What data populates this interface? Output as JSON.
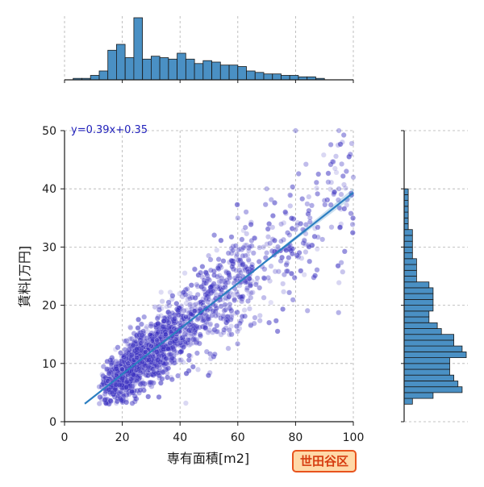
{
  "chart_data": {
    "type": "scatter",
    "xlabel": "専有面積[m2]",
    "ylabel": "賃料[万円]",
    "xlim": [
      0,
      100
    ],
    "ylim": [
      0,
      50
    ],
    "x_ticks": [
      "0",
      "20",
      "40",
      "60",
      "80",
      "100"
    ],
    "y_ticks": [
      "0",
      "10",
      "20",
      "30",
      "40",
      "50"
    ],
    "grid": true,
    "regression": {
      "label": "y=0.39x+0.35",
      "slope": 0.39,
      "intercept": 0.35,
      "x_range": [
        7,
        100
      ]
    },
    "scatter_points_sample": [
      [
        12,
        6
      ],
      [
        15,
        7
      ],
      [
        18,
        8
      ],
      [
        20,
        9
      ],
      [
        22,
        10
      ],
      [
        25,
        11
      ],
      [
        28,
        12
      ],
      [
        30,
        13
      ],
      [
        32,
        14
      ],
      [
        35,
        15
      ],
      [
        38,
        16
      ],
      [
        40,
        17
      ],
      [
        42,
        18
      ],
      [
        45,
        19
      ],
      [
        48,
        20
      ],
      [
        50,
        21
      ],
      [
        55,
        23
      ],
      [
        60,
        25
      ],
      [
        65,
        27
      ],
      [
        70,
        29
      ],
      [
        75,
        31
      ],
      [
        80,
        33
      ],
      [
        85,
        35
      ],
      [
        90,
        38
      ],
      [
        95,
        40
      ],
      [
        100,
        42
      ],
      [
        80,
        50
      ],
      [
        95,
        50
      ],
      [
        70,
        40
      ],
      [
        60,
        35
      ]
    ],
    "x_histogram": {
      "bin_start": 0,
      "bin_width": 3,
      "counts": [
        0,
        1,
        1,
        3,
        6,
        20,
        24,
        15,
        42,
        14,
        16,
        15,
        14,
        18,
        14,
        11,
        13,
        12,
        10,
        10,
        9,
        6,
        5,
        4,
        4,
        3,
        3,
        2,
        2,
        1
      ]
    },
    "y_histogram": {
      "bin_start": 3,
      "bin_width": 1,
      "counts": [
        2,
        7,
        14,
        13,
        12,
        11,
        11,
        11,
        15,
        14,
        12,
        12,
        9,
        8,
        6,
        6,
        7,
        7,
        7,
        7,
        6,
        3,
        3,
        3,
        3,
        2,
        2,
        2,
        2,
        2,
        1,
        1,
        1,
        1,
        1,
        1,
        1
      ]
    }
  },
  "badge": {
    "label": "世田谷区",
    "background": "#ffd9a8",
    "border": "#e8541e",
    "text_color": "#d63c10"
  },
  "colors": {
    "points": "#3a30c0",
    "regression_line": "#2b7ec1",
    "histogram_fill": "#4a90c4",
    "histogram_edge": "#1a1a1a",
    "equation_text": "#2222bb",
    "grid": "#b0b0b0"
  }
}
